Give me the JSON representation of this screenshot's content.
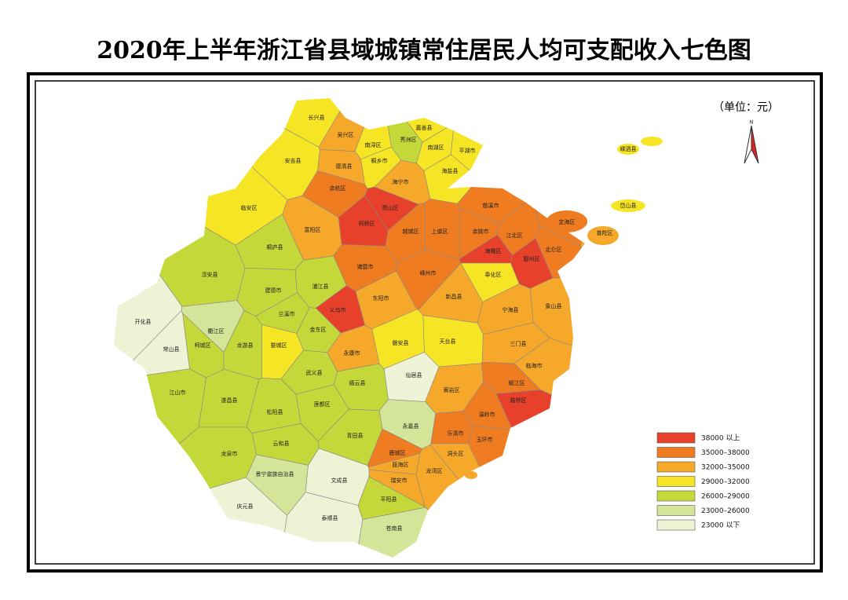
{
  "title": "2020年上半年浙江省县域城镇常住居民人均可支配收入七色图",
  "unit": "（单位：元）",
  "legend": [
    {
      "label": "38000 以上",
      "color": "#e8412b"
    },
    {
      "label": "35000–38000",
      "color": "#f07c22"
    },
    {
      "label": "32000–35000",
      "color": "#f5a829"
    },
    {
      "label": "29000–32000",
      "color": "#f6e524"
    },
    {
      "label": "26000–29000",
      "color": "#c5d83a"
    },
    {
      "label": "23000–26000",
      "color": "#d4e59a"
    },
    {
      "label": "23000 以下",
      "color": "#eef3d6"
    }
  ],
  "counties": [
    {
      "name": "长兴县",
      "legend": 3
    },
    {
      "name": "吴兴区",
      "legend": 2
    },
    {
      "name": "南浔区",
      "legend": 3
    },
    {
      "name": "秀洲区",
      "legend": 4
    },
    {
      "name": "嘉善县",
      "legend": 3
    },
    {
      "name": "南湖区",
      "legend": 3
    },
    {
      "name": "平湖市",
      "legend": 3
    },
    {
      "name": "安吉县",
      "legend": 3
    },
    {
      "name": "德清县",
      "legend": 2
    },
    {
      "name": "桐乡市",
      "legend": 3
    },
    {
      "name": "海盐县",
      "legend": 3
    },
    {
      "name": "海宁市",
      "legend": 2
    },
    {
      "name": "余杭区",
      "legend": 1
    },
    {
      "name": "临安区",
      "legend": 3
    },
    {
      "name": "萧山区",
      "legend": 0
    },
    {
      "name": "柯桥区",
      "legend": 0
    },
    {
      "name": "上虞区",
      "legend": 1
    },
    {
      "name": "越城区",
      "legend": 1
    },
    {
      "name": "富阳区",
      "legend": 2
    },
    {
      "name": "桐庐县",
      "legend": 4
    },
    {
      "name": "诸暨市",
      "legend": 1
    },
    {
      "name": "嵊州市",
      "legend": 1
    },
    {
      "name": "慈溪市",
      "legend": 1
    },
    {
      "name": "余姚市",
      "legend": 1
    },
    {
      "name": "江北区",
      "legend": 1
    },
    {
      "name": "北仑区",
      "legend": 1
    },
    {
      "name": "定海区",
      "legend": 1
    },
    {
      "name": "普陀区",
      "legend": 2
    },
    {
      "name": "岱山县",
      "legend": 3
    },
    {
      "name": "嵊泗县",
      "legend": 3
    },
    {
      "name": "海曙区",
      "legend": 0
    },
    {
      "name": "鄞州区",
      "legend": 0
    },
    {
      "name": "奉化区",
      "legend": 3
    },
    {
      "name": "象山县",
      "legend": 2
    },
    {
      "name": "宁海县",
      "legend": 2
    },
    {
      "name": "新昌县",
      "legend": 2
    },
    {
      "name": "淳安县",
      "legend": 4
    },
    {
      "name": "建德市",
      "legend": 4
    },
    {
      "name": "浦江县",
      "legend": 4
    },
    {
      "name": "兰溪市",
      "legend": 4
    },
    {
      "name": "义乌市",
      "legend": 0
    },
    {
      "name": "东阳市",
      "legend": 2
    },
    {
      "name": "金东区",
      "legend": 4
    },
    {
      "name": "婺城区",
      "legend": 3
    },
    {
      "name": "永康市",
      "legend": 2
    },
    {
      "name": "磐安县",
      "legend": 3
    },
    {
      "name": "天台县",
      "legend": 3
    },
    {
      "name": "三门县",
      "legend": 2
    },
    {
      "name": "临海市",
      "legend": 2
    },
    {
      "name": "开化县",
      "legend": 6
    },
    {
      "name": "衢江区",
      "legend": 5
    },
    {
      "name": "柯城区",
      "legend": 4
    },
    {
      "name": "龙游县",
      "legend": 4
    },
    {
      "name": "常山县",
      "legend": 6
    },
    {
      "name": "武义县",
      "legend": 4
    },
    {
      "name": "缙云县",
      "legend": 4
    },
    {
      "name": "仙居县",
      "legend": 6
    },
    {
      "name": "黄岩区",
      "legend": 2
    },
    {
      "name": "椒江区",
      "legend": 1
    },
    {
      "name": "路桥区",
      "legend": 0
    },
    {
      "name": "温岭市",
      "legend": 1
    },
    {
      "name": "江山市",
      "legend": 4
    },
    {
      "name": "遂昌县",
      "legend": 4
    },
    {
      "name": "松阳县",
      "legend": 4
    },
    {
      "name": "莲都区",
      "legend": 4
    },
    {
      "name": "青田县",
      "legend": 4
    },
    {
      "name": "永嘉县",
      "legend": 5
    },
    {
      "name": "乐清市",
      "legend": 1
    },
    {
      "name": "玉环市",
      "legend": 1
    },
    {
      "name": "云和县",
      "legend": 4
    },
    {
      "name": "龙泉市",
      "legend": 4
    },
    {
      "name": "景宁畲族自治县",
      "legend": 5
    },
    {
      "name": "鹿城区",
      "legend": 1
    },
    {
      "name": "瓯海区",
      "legend": 2
    },
    {
      "name": "龙湾区",
      "legend": 2
    },
    {
      "name": "洞头区",
      "legend": 2
    },
    {
      "name": "瑞安市",
      "legend": 2
    },
    {
      "name": "文成县",
      "legend": 6
    },
    {
      "name": "平阳县",
      "legend": 4
    },
    {
      "name": "庆元县",
      "legend": 6
    },
    {
      "name": "泰顺县",
      "legend": 6
    },
    {
      "name": "苍南县",
      "legend": 5
    }
  ]
}
